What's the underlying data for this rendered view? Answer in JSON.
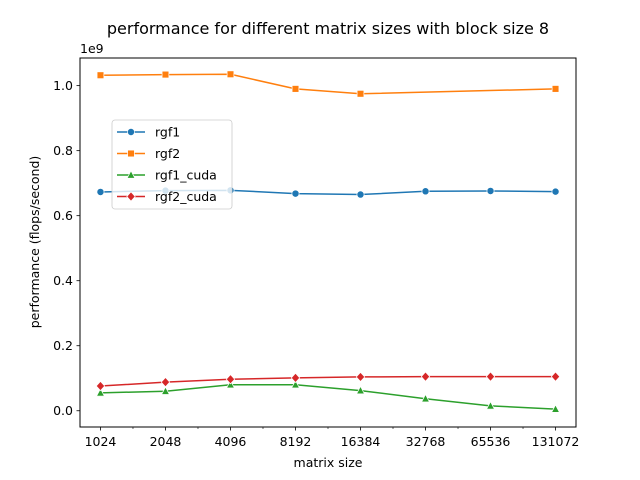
{
  "chart_data": {
    "type": "line",
    "title": "performance for different matrix sizes with block size 8",
    "xlabel": "matrix size",
    "ylabel": "performance (flops/second)",
    "y_offset_label": "1e9",
    "x_scale": "log2",
    "x": [
      1024,
      2048,
      4096,
      8192,
      16384,
      32768,
      65536,
      131072
    ],
    "x_tick_labels": [
      "1024",
      "2048",
      "4096",
      "8192",
      "16384",
      "32768",
      "65536",
      "131072"
    ],
    "y_ticks": [
      0.0,
      0.2,
      0.4,
      0.6,
      0.8,
      1.0
    ],
    "y_tick_labels": [
      "0.0",
      "0.2",
      "0.4",
      "0.6",
      "0.8",
      "1.0"
    ],
    "ylim": [
      -0.05,
      1.085
    ],
    "y_unit_scale": 1000000000,
    "grid": false,
    "legend_position": "upper-left",
    "series": [
      {
        "name": "rgf1",
        "color": "#1f77b4",
        "marker": "circle",
        "values": [
          0.673,
          0.677,
          0.678,
          0.668,
          0.665,
          0.675,
          0.676,
          0.674
        ]
      },
      {
        "name": "rgf2",
        "color": "#ff7f0e",
        "marker": "square",
        "values": [
          1.032,
          1.034,
          1.035,
          0.99,
          0.975,
          null,
          null,
          0.99
        ]
      },
      {
        "name": "rgf1_cuda",
        "color": "#2ca02c",
        "marker": "triangle",
        "values": [
          0.055,
          0.06,
          0.08,
          0.08,
          0.062,
          0.037,
          0.015,
          0.005
        ]
      },
      {
        "name": "rgf2_cuda",
        "color": "#d62728",
        "marker": "diamond",
        "values": [
          0.076,
          0.088,
          0.097,
          0.101,
          0.104,
          0.105,
          0.105,
          0.105
        ]
      }
    ]
  }
}
